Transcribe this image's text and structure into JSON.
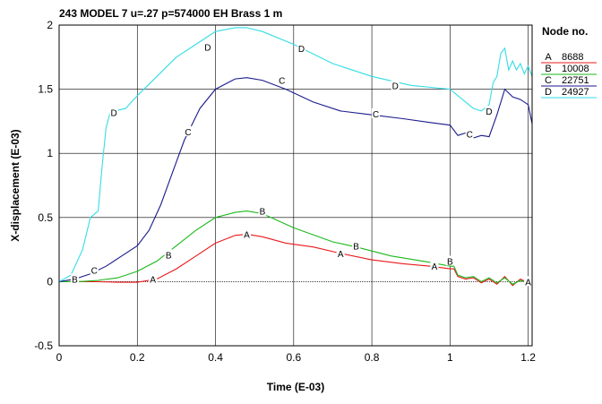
{
  "chart_data": {
    "type": "line",
    "title": "243 MODEL 7 u=.27 p=574000 EH Brass 1 m",
    "xlabel": "Time (E-03)",
    "ylabel": "X-displacement (E-03)",
    "xlim": [
      0,
      1.21
    ],
    "ylim": [
      -0.5,
      2
    ],
    "xticks": [
      0,
      0.2,
      0.4,
      0.6,
      0.8,
      1,
      1.2
    ],
    "xtick_labels": [
      "0",
      "0.2",
      "0.4",
      "0.6",
      "0.8",
      "1",
      "1.2"
    ],
    "yticks": [
      -0.5,
      0,
      0.5,
      1,
      1.5,
      2
    ],
    "ytick_labels": [
      "-0.5",
      "0",
      "0.5",
      "1",
      "1.5",
      "2"
    ],
    "grid": true,
    "legend_title": "Node no.",
    "legend_position": "right",
    "series": [
      {
        "name": "8688",
        "marker": "A",
        "color": "#e8191a",
        "x": [
          0,
          0.1,
          0.15,
          0.2,
          0.25,
          0.3,
          0.35,
          0.4,
          0.45,
          0.48,
          0.52,
          0.58,
          0.65,
          0.72,
          0.8,
          0.88,
          0.95,
          1.0,
          1.01,
          1.02,
          1.04,
          1.06,
          1.08,
          1.1,
          1.12,
          1.14,
          1.16,
          1.18,
          1.2,
          1.21
        ],
        "y": [
          0,
          0,
          -0.005,
          -0.005,
          0.02,
          0.1,
          0.2,
          0.3,
          0.36,
          0.37,
          0.35,
          0.3,
          0.27,
          0.22,
          0.17,
          0.14,
          0.12,
          0.1,
          0.1,
          0.04,
          0.02,
          0.03,
          -0.01,
          0.02,
          -0.02,
          0.04,
          -0.03,
          0.02,
          -0.01,
          -0.02
        ],
        "marker_points": [
          [
            0.24,
            0.02
          ],
          [
            0.48,
            0.37
          ],
          [
            0.72,
            0.22
          ],
          [
            0.96,
            0.12
          ],
          [
            1.2,
            0
          ]
        ]
      },
      {
        "name": "10008",
        "marker": "B",
        "color": "#1ab81a",
        "x": [
          0,
          0.05,
          0.1,
          0.15,
          0.2,
          0.25,
          0.3,
          0.35,
          0.4,
          0.45,
          0.48,
          0.52,
          0.6,
          0.7,
          0.76,
          0.85,
          0.95,
          1.0,
          1.01,
          1.02,
          1.04,
          1.06,
          1.08,
          1.1,
          1.12,
          1.14,
          1.16,
          1.18,
          1.2,
          1.21
        ],
        "y": [
          0,
          0,
          0.01,
          0.03,
          0.08,
          0.16,
          0.28,
          0.4,
          0.5,
          0.54,
          0.55,
          0.53,
          0.42,
          0.31,
          0.27,
          0.2,
          0.15,
          0.12,
          0.12,
          0.05,
          0.03,
          0.04,
          0,
          0.03,
          -0.01,
          0.03,
          -0.02,
          0.01,
          -0.01,
          -0.02
        ],
        "marker_points": [
          [
            0.04,
            0.02
          ],
          [
            0.28,
            0.21
          ],
          [
            0.52,
            0.55
          ],
          [
            0.76,
            0.28
          ],
          [
            1.0,
            0.16
          ]
        ]
      },
      {
        "name": "22751",
        "marker": "C",
        "color": "#1a1a8c",
        "x": [
          0,
          0.04,
          0.08,
          0.12,
          0.16,
          0.2,
          0.23,
          0.26,
          0.29,
          0.32,
          0.36,
          0.4,
          0.45,
          0.48,
          0.52,
          0.58,
          0.65,
          0.72,
          0.8,
          0.88,
          0.95,
          1.0,
          1.02,
          1.04,
          1.06,
          1.08,
          1.1,
          1.12,
          1.14,
          1.16,
          1.18,
          1.2,
          1.21
        ],
        "y": [
          0,
          0.02,
          0.06,
          0.12,
          0.2,
          0.28,
          0.4,
          0.6,
          0.85,
          1.1,
          1.35,
          1.5,
          1.58,
          1.59,
          1.57,
          1.5,
          1.4,
          1.33,
          1.3,
          1.27,
          1.24,
          1.22,
          1.14,
          1.16,
          1.12,
          1.14,
          1.13,
          1.3,
          1.5,
          1.44,
          1.42,
          1.38,
          1.23
        ],
        "marker_points": [
          [
            0.09,
            0.09
          ],
          [
            0.33,
            1.17
          ],
          [
            0.57,
            1.57
          ],
          [
            0.81,
            1.31
          ],
          [
            1.05,
            1.15
          ]
        ]
      },
      {
        "name": "24927",
        "marker": "D",
        "color": "#33dde6",
        "x": [
          0,
          0.03,
          0.06,
          0.08,
          0.1,
          0.11,
          0.12,
          0.13,
          0.14,
          0.17,
          0.2,
          0.25,
          0.3,
          0.35,
          0.4,
          0.45,
          0.48,
          0.52,
          0.6,
          0.7,
          0.8,
          0.9,
          1.0,
          1.02,
          1.04,
          1.06,
          1.08,
          1.1,
          1.11,
          1.12,
          1.13,
          1.14,
          1.15,
          1.16,
          1.17,
          1.18,
          1.19,
          1.2,
          1.21
        ],
        "y": [
          0,
          0.05,
          0.25,
          0.5,
          0.55,
          0.9,
          1.2,
          1.31,
          1.33,
          1.35,
          1.45,
          1.6,
          1.75,
          1.85,
          1.95,
          1.98,
          1.98,
          1.95,
          1.85,
          1.7,
          1.6,
          1.53,
          1.5,
          1.45,
          1.4,
          1.35,
          1.33,
          1.38,
          1.55,
          1.6,
          1.78,
          1.82,
          1.65,
          1.72,
          1.65,
          1.7,
          1.62,
          1.68,
          1.6
        ],
        "marker_points": [
          [
            0.14,
            1.32
          ],
          [
            0.38,
            1.83
          ],
          [
            0.62,
            1.82
          ],
          [
            0.86,
            1.53
          ],
          [
            1.1,
            1.33
          ]
        ]
      }
    ]
  }
}
